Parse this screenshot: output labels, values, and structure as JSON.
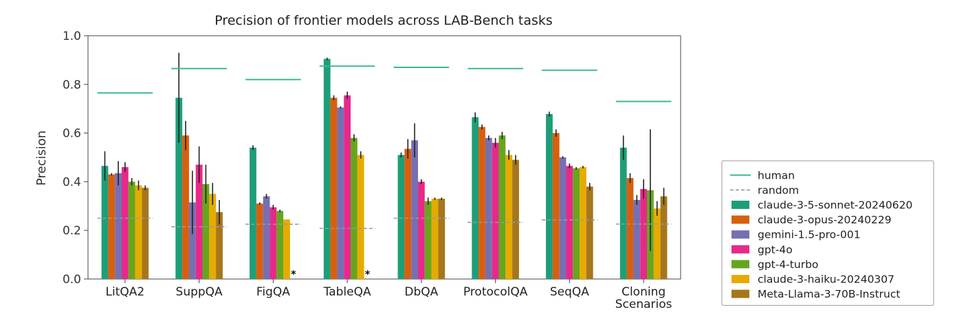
{
  "chart_data": {
    "type": "bar",
    "title": "Precision of frontier models across LAB-Bench tasks",
    "xlabel": "",
    "ylabel": "Precision",
    "ylim": [
      0.0,
      1.0
    ],
    "yticks": [
      "0.0",
      "0.2",
      "0.4",
      "0.6",
      "0.8",
      "1.0"
    ],
    "grid": false,
    "legend_position": "right",
    "categories": [
      {
        "label": "LitQA2"
      },
      {
        "label": "SuppQA"
      },
      {
        "label": "FigQA"
      },
      {
        "label": "TableQA"
      },
      {
        "label": "DbQA"
      },
      {
        "label": "ProtocolQA"
      },
      {
        "label": "SeqQA"
      },
      {
        "label": "Cloning\nScenarios"
      }
    ],
    "human": [
      0.765,
      0.865,
      0.82,
      0.875,
      0.87,
      0.865,
      0.858,
      0.73
    ],
    "random": [
      0.25,
      0.215,
      0.225,
      0.208,
      0.25,
      0.233,
      0.243,
      0.226
    ],
    "series": [
      {
        "name": "claude-3-5-sonnet-20240620",
        "color": "#1e9e78",
        "values": [
          0.465,
          0.745,
          0.54,
          0.905,
          0.51,
          0.665,
          0.678,
          0.54
        ],
        "err": [
          0.06,
          0.185,
          0.01,
          0.005,
          0.01,
          0.02,
          0.01,
          0.05
        ]
      },
      {
        "name": "claude-3-opus-20240229",
        "color": "#d95f0e",
        "values": [
          0.43,
          0.59,
          0.31,
          0.745,
          0.535,
          0.625,
          0.6,
          0.415
        ],
        "err": [
          0.005,
          0.06,
          0.005,
          0.01,
          0.04,
          0.01,
          0.015,
          0.02
        ]
      },
      {
        "name": "gemini-1.5-pro-001",
        "color": "#7570b3",
        "values": [
          0.435,
          0.315,
          0.34,
          0.705,
          0.57,
          0.58,
          0.5,
          0.325
        ],
        "err": [
          0.05,
          0.13,
          0.01,
          0.005,
          0.07,
          0.01,
          0.005,
          0.02
        ]
      },
      {
        "name": "gpt-4o",
        "color": "#e7298a",
        "values": [
          0.46,
          0.47,
          0.295,
          0.755,
          0.4,
          0.56,
          0.465,
          0.37
        ],
        "err": [
          0.02,
          0.075,
          0.01,
          0.015,
          0.01,
          0.02,
          0.01,
          0.04
        ]
      },
      {
        "name": "gpt-4-turbo",
        "color": "#66a61e",
        "values": [
          0.4,
          0.39,
          0.28,
          0.58,
          0.32,
          0.59,
          0.455,
          0.365
        ],
        "err": [
          0.015,
          0.08,
          0.005,
          0.015,
          0.015,
          0.015,
          0.005,
          0.25
        ]
      },
      {
        "name": "claude-3-haiku-20240307",
        "color": "#e6ab02",
        "values": [
          0.385,
          0.35,
          0.245,
          0.51,
          0.33,
          0.51,
          0.46,
          0.29
        ],
        "err": [
          0.02,
          0.045,
          0.0,
          0.015,
          0.005,
          0.02,
          0.005,
          0.03
        ]
      },
      {
        "name": "Meta-Llama-3-70B-Instruct",
        "color": "#a6761d",
        "values": [
          0.375,
          0.275,
          0.0,
          0.0,
          0.33,
          0.49,
          0.38,
          0.34
        ],
        "err": [
          0.01,
          0.05,
          0.0,
          0.0,
          0.005,
          0.02,
          0.015,
          0.035
        ]
      }
    ],
    "missing_marker": "*",
    "missing_marker_categories": [
      "FigQA",
      "TableQA"
    ],
    "legend": {
      "human_label": "human",
      "random_label": "random",
      "human_color": "#3cb896",
      "random_color": "#999999"
    }
  }
}
